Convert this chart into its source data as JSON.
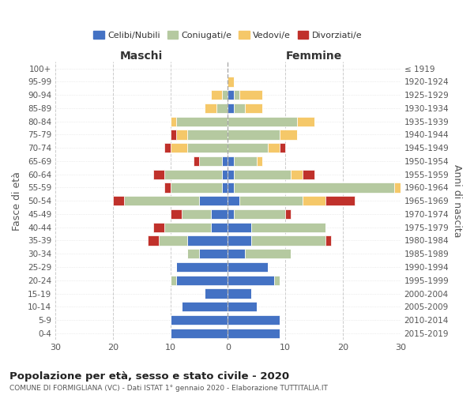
{
  "age_groups": [
    "0-4",
    "5-9",
    "10-14",
    "15-19",
    "20-24",
    "25-29",
    "30-34",
    "35-39",
    "40-44",
    "45-49",
    "50-54",
    "55-59",
    "60-64",
    "65-69",
    "70-74",
    "75-79",
    "80-84",
    "85-89",
    "90-94",
    "95-99",
    "100+"
  ],
  "birth_years": [
    "2015-2019",
    "2010-2014",
    "2005-2009",
    "2000-2004",
    "1995-1999",
    "1990-1994",
    "1985-1989",
    "1980-1984",
    "1975-1979",
    "1970-1974",
    "1965-1969",
    "1960-1964",
    "1955-1959",
    "1950-1954",
    "1945-1949",
    "1940-1944",
    "1935-1939",
    "1930-1934",
    "1925-1929",
    "1920-1924",
    "≤ 1919"
  ],
  "maschi": {
    "celibi": [
      10,
      10,
      8,
      4,
      9,
      9,
      5,
      7,
      3,
      3,
      5,
      1,
      1,
      1,
      0,
      0,
      0,
      0,
      0,
      0,
      0
    ],
    "coniugati": [
      0,
      0,
      0,
      0,
      1,
      0,
      2,
      5,
      8,
      5,
      13,
      9,
      10,
      4,
      7,
      7,
      9,
      2,
      1,
      0,
      0
    ],
    "vedovi": [
      0,
      0,
      0,
      0,
      0,
      0,
      0,
      0,
      0,
      0,
      0,
      0,
      0,
      0,
      3,
      2,
      1,
      2,
      2,
      0,
      0
    ],
    "divorziati": [
      0,
      0,
      0,
      0,
      0,
      0,
      0,
      2,
      2,
      2,
      2,
      1,
      2,
      1,
      1,
      1,
      0,
      0,
      0,
      0,
      0
    ]
  },
  "femmine": {
    "nubili": [
      9,
      9,
      5,
      4,
      8,
      7,
      3,
      4,
      4,
      1,
      2,
      1,
      1,
      1,
      0,
      0,
      0,
      1,
      1,
      0,
      0
    ],
    "coniugate": [
      0,
      0,
      0,
      0,
      1,
      0,
      8,
      13,
      13,
      9,
      11,
      28,
      10,
      4,
      7,
      9,
      12,
      2,
      1,
      0,
      0
    ],
    "vedove": [
      0,
      0,
      0,
      0,
      0,
      0,
      0,
      0,
      0,
      0,
      4,
      1,
      2,
      1,
      2,
      3,
      3,
      3,
      4,
      1,
      0
    ],
    "divorziate": [
      0,
      0,
      0,
      0,
      0,
      0,
      0,
      1,
      0,
      1,
      5,
      0,
      2,
      0,
      1,
      0,
      0,
      0,
      0,
      0,
      0
    ]
  },
  "colors": {
    "celibi": "#4472c4",
    "coniugati": "#b5c9a0",
    "vedovi": "#f5c869",
    "divorziati": "#c0312b"
  },
  "xlim": 30,
  "title": "Popolazione per età, sesso e stato civile - 2020",
  "subtitle": "COMUNE DI FORMIGLIANA (VC) - Dati ISTAT 1° gennaio 2020 - Elaborazione TUTTITALIA.IT",
  "ylabel_left": "Fasce di età",
  "ylabel_right": "Anni di nascita",
  "xlabel_maschi": "Maschi",
  "xlabel_femmine": "Femmine",
  "legend_labels": [
    "Celibi/Nubili",
    "Coniugati/e",
    "Vedovi/e",
    "Divorziati/e"
  ]
}
